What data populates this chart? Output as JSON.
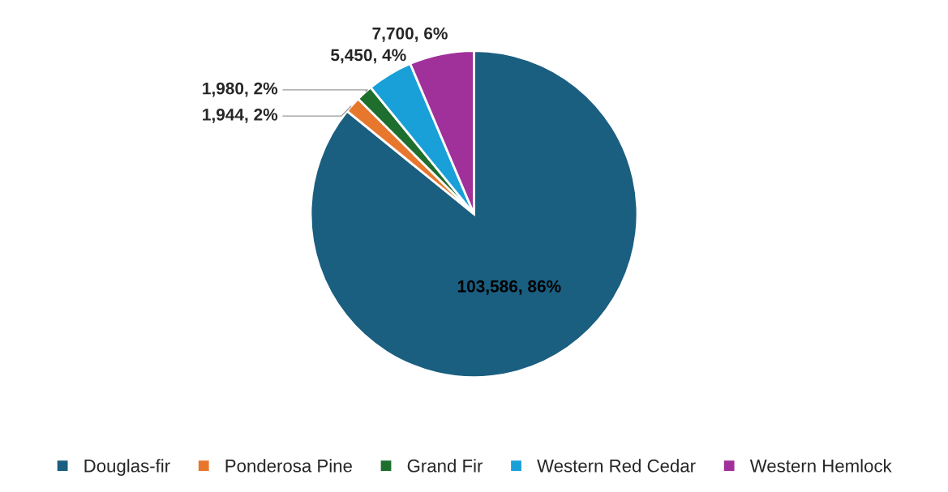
{
  "chart_data": {
    "type": "pie",
    "categories": [
      "Douglas-fir",
      "Ponderosa Pine",
      "Grand Fir",
      "Western Red Cedar",
      "Western Hemlock"
    ],
    "values": [
      103586,
      1944,
      1980,
      5450,
      7700
    ],
    "colors": [
      "#1a5e80",
      "#e8772e",
      "#1e6e2e",
      "#1aa0d8",
      "#a0309a"
    ],
    "value_labels": [
      "103,586, 86%",
      "1,944, 2%",
      "1,980, 2%",
      "5,450, 4%",
      "7,700, 6%"
    ],
    "legend": "bottom"
  }
}
